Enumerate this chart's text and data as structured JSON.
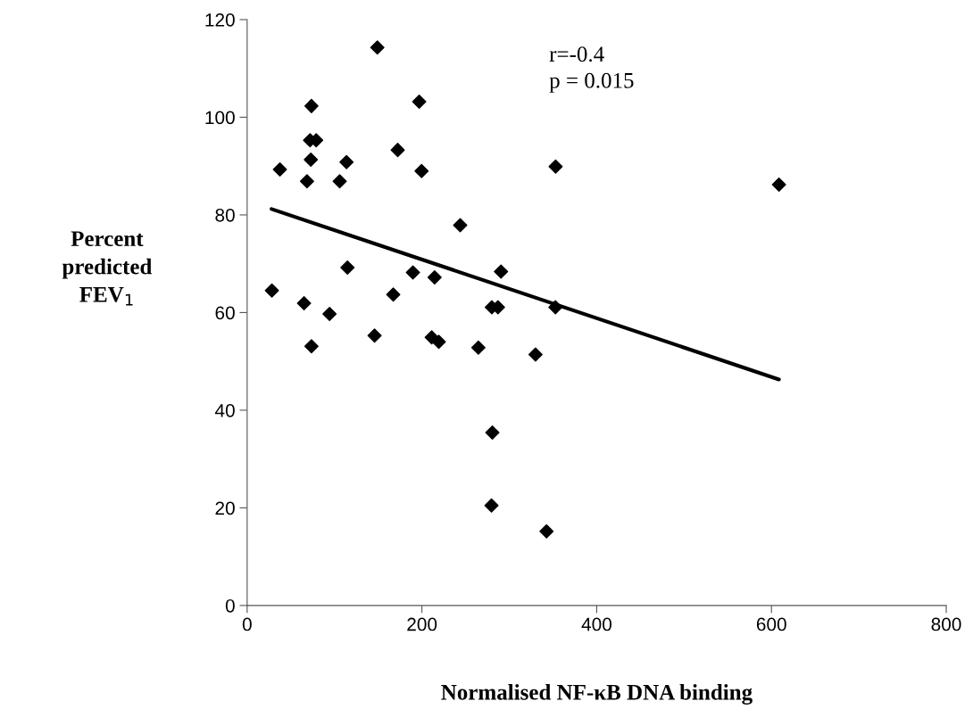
{
  "chart_data": {
    "type": "scatter",
    "xlabel": "Normalised NF-κB DNA binding",
    "ylabel": "Percent\npredicted\nFEV$_{1}$",
    "annotations": [
      "r=-0.4",
      "p = 0.015"
    ],
    "xlim": [
      0,
      800
    ],
    "xticks": [
      0,
      200,
      400,
      600,
      800
    ],
    "ylim": [
      0,
      120
    ],
    "yticks": [
      0,
      20,
      40,
      60,
      80,
      100,
      120
    ],
    "grid": false,
    "legend": false,
    "series": [
      {
        "marker": "diamond",
        "color": "#000000",
        "x": [
          73.6,
          196.9,
          72,
          79,
          172.3,
          72.9,
          113.7,
          37.5,
          199.6,
          68.5,
          105.9,
          243.8,
          114.8,
          189.7,
          214.5,
          290.5,
          28.3,
          167.2,
          65.1,
          280,
          287,
          94.3,
          352.8,
          145.8,
          73.6,
          211.2,
          219.3,
          264.6,
          330,
          280.6,
          279.6,
          342.6,
          149,
          353,
          608.6
        ],
        "values": [
          102.3,
          103.2,
          95.3,
          95.3,
          93.3,
          91.3,
          90.8,
          89.3,
          89.0,
          86.9,
          86.9,
          77.9,
          69.2,
          68.2,
          67.2,
          68.4,
          64.5,
          63.7,
          61.9,
          61.1,
          61.1,
          59.7,
          61.1,
          55.3,
          53.1,
          54.9,
          54.0,
          52.8,
          51.4,
          35.4,
          20.5,
          15.2,
          114.3,
          89.9,
          86.2
        ]
      },
      {
        "type": "line",
        "marker": "none",
        "color": "#000000",
        "x": [
          27.9,
          608.6
        ],
        "values": [
          81.2,
          46.3
        ]
      }
    ]
  }
}
